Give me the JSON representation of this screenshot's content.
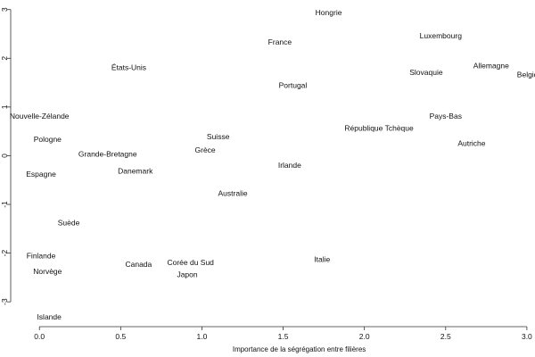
{
  "chart_data": {
    "type": "scatter",
    "title": "",
    "xlabel": "Importance de la ségrégation entre filières",
    "ylabel": "",
    "xlim": [
      -0.1,
      3.05
    ],
    "ylim": [
      -3.4,
      3.05
    ],
    "x_ticks": [
      "0.0",
      "0.5",
      "1.0",
      "1.5",
      "2.0",
      "2.5",
      "3.0"
    ],
    "x_tick_values": [
      0,
      0.5,
      1.0,
      1.5,
      2.0,
      2.5,
      3.0
    ],
    "y_ticks": [
      "-3",
      "-2",
      "-1",
      "0",
      "1",
      "2",
      "3"
    ],
    "y_tick_values": [
      -3,
      -2,
      -1,
      0,
      1,
      2,
      3
    ],
    "grid": false,
    "point_markers": "text labels only",
    "points": [
      {
        "label": "Hongrie",
        "x": 1.78,
        "y": 2.93
      },
      {
        "label": "France",
        "x": 1.48,
        "y": 2.32
      },
      {
        "label": "Luxembourg",
        "x": 2.47,
        "y": 2.45
      },
      {
        "label": "Allemagne",
        "x": 2.78,
        "y": 1.84
      },
      {
        "label": "Belgique",
        "x": 3.03,
        "y": 1.65
      },
      {
        "label": "Slovaquie",
        "x": 2.38,
        "y": 1.7
      },
      {
        "label": "États-Unis",
        "x": 0.55,
        "y": 1.8
      },
      {
        "label": "Portugal",
        "x": 1.56,
        "y": 1.43
      },
      {
        "label": "Nouvelle-Zélande",
        "x": 0.0,
        "y": 0.8
      },
      {
        "label": "Pays-Bas",
        "x": 2.5,
        "y": 0.8
      },
      {
        "label": "République Tchèque",
        "x": 2.09,
        "y": 0.55
      },
      {
        "label": "Pologne",
        "x": 0.05,
        "y": 0.32
      },
      {
        "label": "Suisse",
        "x": 1.1,
        "y": 0.38
      },
      {
        "label": "Autriche",
        "x": 2.66,
        "y": 0.24
      },
      {
        "label": "Grèce",
        "x": 1.02,
        "y": 0.1
      },
      {
        "label": "Grande-Bretagne",
        "x": 0.42,
        "y": 0.02
      },
      {
        "label": "Danemark",
        "x": 0.59,
        "y": -0.33
      },
      {
        "label": "Irlande",
        "x": 1.54,
        "y": -0.21
      },
      {
        "label": "Espagne",
        "x": 0.01,
        "y": -0.39
      },
      {
        "label": "Australie",
        "x": 1.19,
        "y": -0.78
      },
      {
        "label": "Suède",
        "x": 0.18,
        "y": -1.39
      },
      {
        "label": "Finlande",
        "x": 0.01,
        "y": -2.07
      },
      {
        "label": "Italie",
        "x": 1.74,
        "y": -2.14
      },
      {
        "label": "Canada",
        "x": 0.61,
        "y": -2.24
      },
      {
        "label": "Corée du Sud",
        "x": 0.93,
        "y": -2.2
      },
      {
        "label": "Norvège",
        "x": 0.05,
        "y": -2.39
      },
      {
        "label": "Japon",
        "x": 0.91,
        "y": -2.45
      },
      {
        "label": "Islande",
        "x": 0.06,
        "y": -3.32
      }
    ]
  }
}
